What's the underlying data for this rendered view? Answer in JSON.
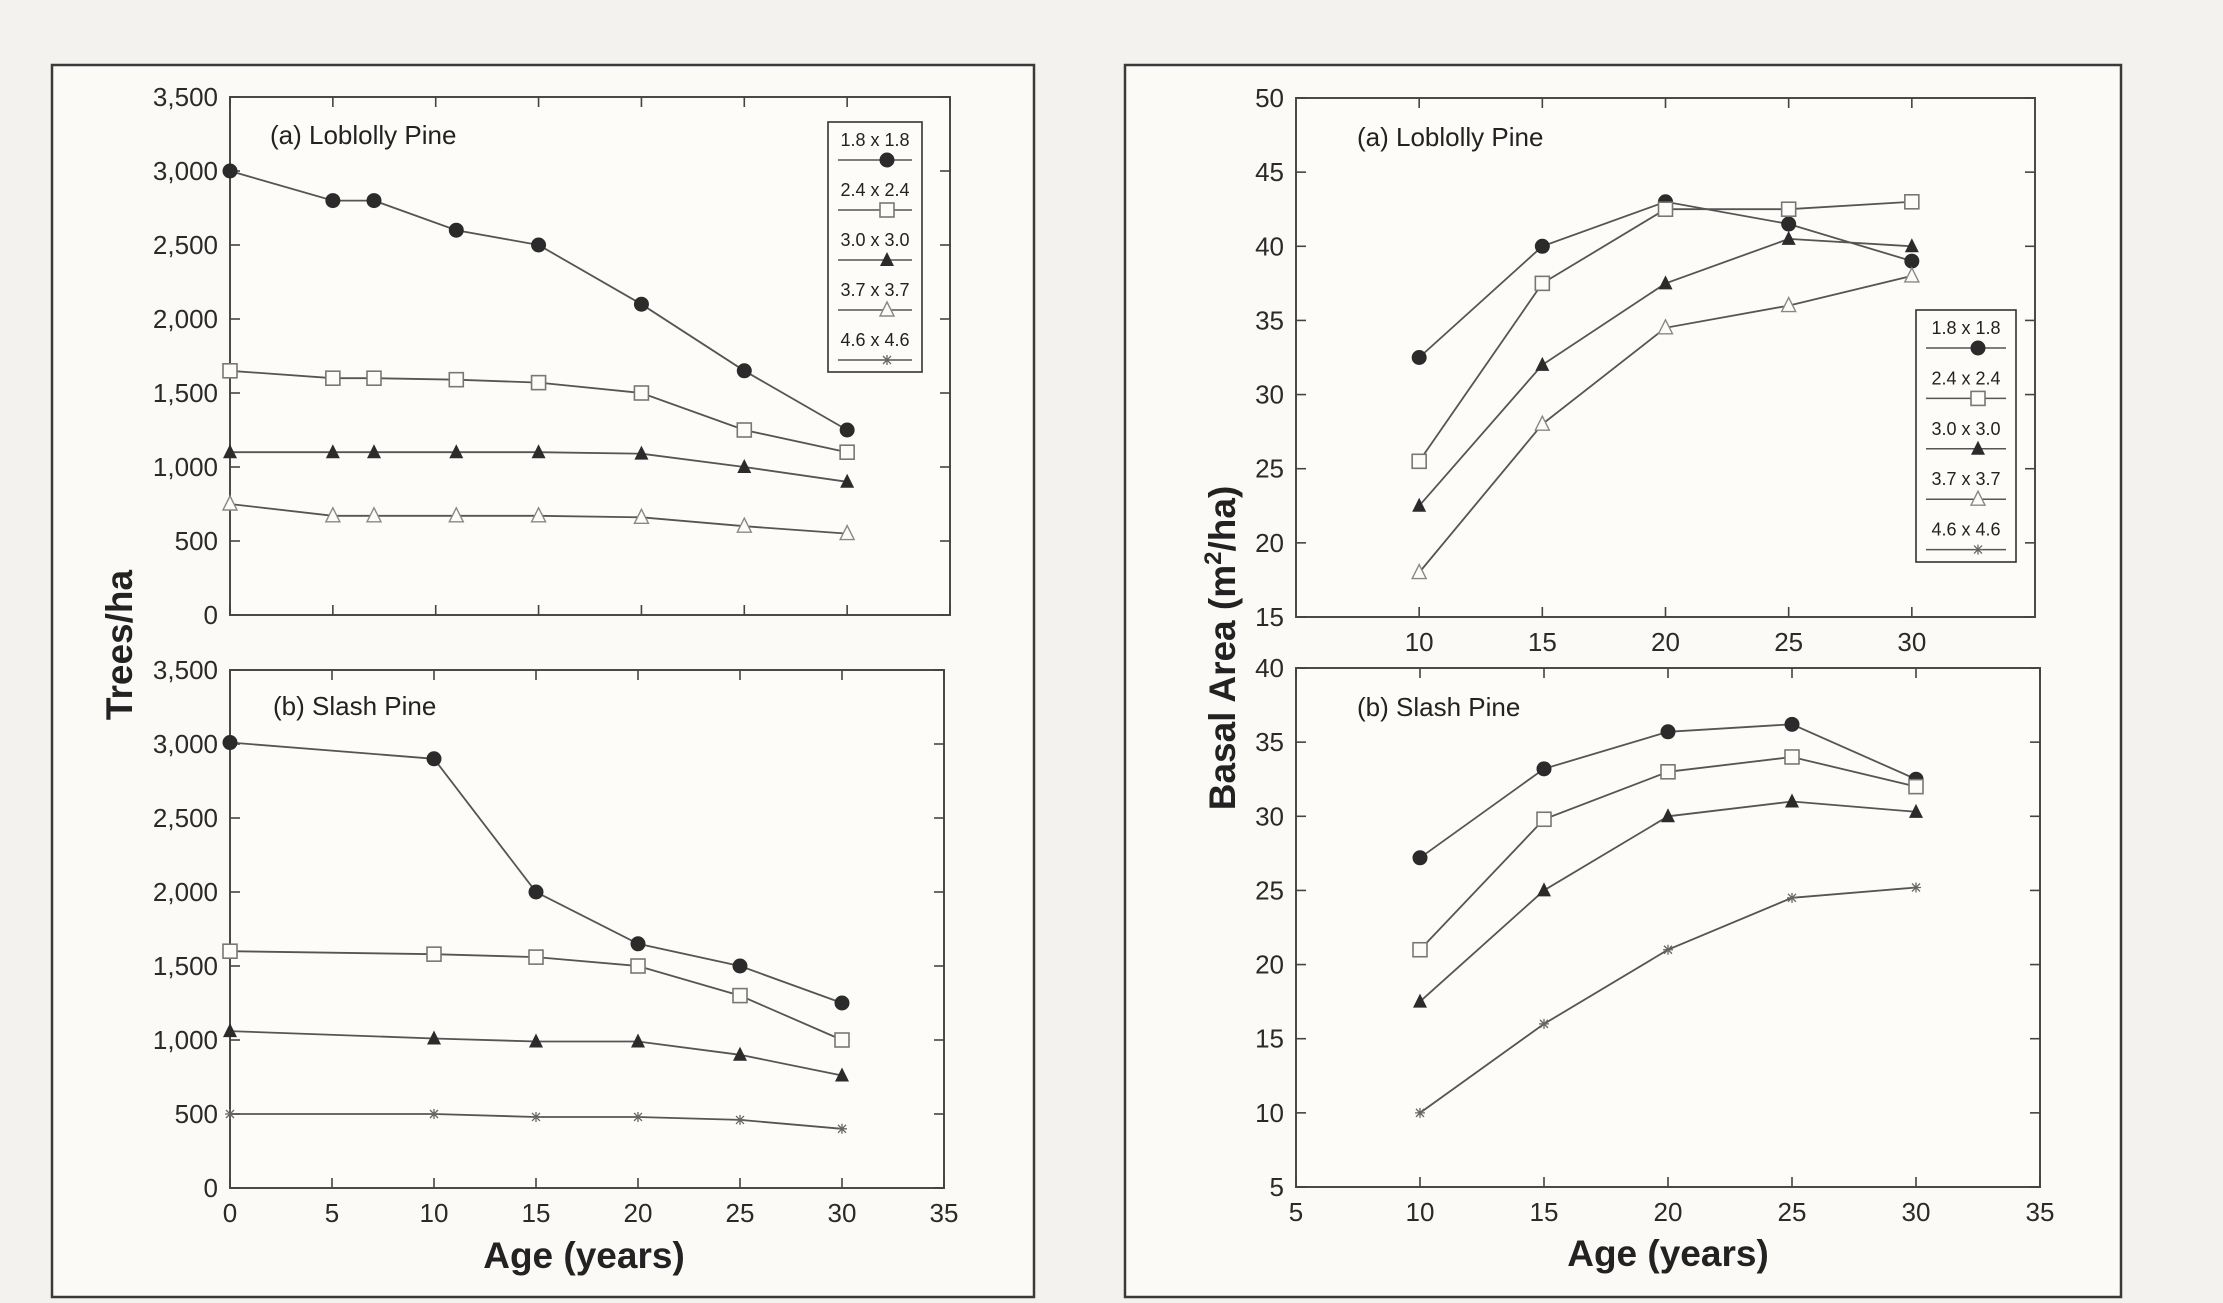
{
  "chart_data": [
    {
      "type": "line",
      "title": "(a) Loblolly Pine",
      "xlabel": "",
      "ylabel": "Trees/ha",
      "xlim": [
        0,
        35
      ],
      "ylim": [
        0,
        3500
      ],
      "xticks": [
        "0",
        "5",
        "10",
        "15",
        "20",
        "25",
        "30",
        "35"
      ],
      "yticks": [
        "0",
        "500",
        "1,000",
        "1,500",
        "2,000",
        "2,500",
        "3,000",
        "3,500"
      ],
      "legend": [
        "1.8 x 1.8",
        "2.4 x 2.4",
        "3.0 x 3.0",
        "3.7 x 3.7",
        "4.6 x 4.6"
      ],
      "legend_position": "top-right",
      "series": [
        {
          "name": "1.8 x 1.8",
          "marker": "circle-filled",
          "points": [
            [
              0,
              3000
            ],
            [
              5,
              2800
            ],
            [
              7,
              2800
            ],
            [
              11,
              2600
            ],
            [
              15,
              2500
            ],
            [
              20,
              2100
            ],
            [
              25,
              1650
            ],
            [
              30,
              1250
            ]
          ]
        },
        {
          "name": "2.4 x 2.4",
          "marker": "square-open",
          "points": [
            [
              0,
              1650
            ],
            [
              5,
              1600
            ],
            [
              7,
              1600
            ],
            [
              11,
              1590
            ],
            [
              15,
              1570
            ],
            [
              20,
              1500
            ],
            [
              25,
              1250
            ],
            [
              30,
              1100
            ]
          ]
        },
        {
          "name": "3.0 x 3.0",
          "marker": "triangle-filled",
          "points": [
            [
              0,
              1100
            ],
            [
              5,
              1100
            ],
            [
              7,
              1100
            ],
            [
              11,
              1100
            ],
            [
              15,
              1100
            ],
            [
              20,
              1090
            ],
            [
              25,
              1000
            ],
            [
              30,
              900
            ]
          ]
        },
        {
          "name": "3.7 x 3.7",
          "marker": "triangle-open",
          "points": [
            [
              0,
              750
            ],
            [
              5,
              670
            ],
            [
              7,
              670
            ],
            [
              11,
              670
            ],
            [
              15,
              670
            ],
            [
              20,
              660
            ],
            [
              25,
              600
            ],
            [
              30,
              550
            ]
          ]
        }
      ]
    },
    {
      "type": "line",
      "title": "(b) Slash Pine",
      "xlabel": "Age (years)",
      "ylabel": "",
      "xlim": [
        0,
        35
      ],
      "ylim": [
        0,
        3500
      ],
      "xticks": [
        "0",
        "5",
        "10",
        "15",
        "20",
        "25",
        "30",
        "35"
      ],
      "yticks": [
        "0",
        "500",
        "1,000",
        "1,500",
        "2,000",
        "2,500",
        "3,000",
        "3,500"
      ],
      "series": [
        {
          "name": "1.8 x 1.8",
          "marker": "circle-filled",
          "points": [
            [
              0,
              3010
            ],
            [
              10,
              2900
            ],
            [
              15,
              2000
            ],
            [
              20,
              1650
            ],
            [
              25,
              1500
            ],
            [
              30,
              1250
            ]
          ]
        },
        {
          "name": "2.4 x 2.4",
          "marker": "square-open",
          "points": [
            [
              0,
              1600
            ],
            [
              10,
              1580
            ],
            [
              15,
              1560
            ],
            [
              20,
              1500
            ],
            [
              25,
              1300
            ],
            [
              30,
              1000
            ]
          ]
        },
        {
          "name": "3.0 x 3.0",
          "marker": "triangle-filled",
          "points": [
            [
              0,
              1060
            ],
            [
              10,
              1010
            ],
            [
              15,
              990
            ],
            [
              20,
              990
            ],
            [
              25,
              900
            ],
            [
              30,
              760
            ]
          ]
        },
        {
          "name": "4.6 x 4.6",
          "marker": "star",
          "points": [
            [
              0,
              500
            ],
            [
              10,
              500
            ],
            [
              15,
              480
            ],
            [
              20,
              480
            ],
            [
              25,
              460
            ],
            [
              30,
              400
            ]
          ]
        }
      ]
    },
    {
      "type": "line",
      "title": "(a) Loblolly Pine",
      "xlabel": "",
      "ylabel": "Basal Area (m²/ha)",
      "xlim": [
        5,
        35
      ],
      "ylim": [
        15,
        50
      ],
      "yticks": [
        "15",
        "20",
        "25",
        "30",
        "35",
        "40",
        "45",
        "50"
      ],
      "legend": [
        "1.8 x 1.8",
        "2.4 x 2.4",
        "3.0 x 3.0",
        "3.7 x 3.7",
        "4.6 x 4.6"
      ],
      "legend_position": "right",
      "series": [
        {
          "name": "1.8 x 1.8",
          "marker": "circle-filled",
          "points": [
            [
              10,
              32.5
            ],
            [
              15,
              40
            ],
            [
              20,
              43
            ],
            [
              25,
              41.5
            ],
            [
              30,
              39
            ]
          ]
        },
        {
          "name": "2.4 x 2.4",
          "marker": "square-open",
          "points": [
            [
              10,
              25.5
            ],
            [
              15,
              37.5
            ],
            [
              20,
              42.5
            ],
            [
              25,
              42.5
            ],
            [
              30,
              43
            ]
          ]
        },
        {
          "name": "3.0 x 3.0",
          "marker": "triangle-filled",
          "points": [
            [
              10,
              22.5
            ],
            [
              15,
              32
            ],
            [
              20,
              37.5
            ],
            [
              25,
              40.5
            ],
            [
              30,
              40
            ]
          ]
        },
        {
          "name": "3.7 x 3.7",
          "marker": "triangle-open",
          "points": [
            [
              10,
              18
            ],
            [
              15,
              28
            ],
            [
              20,
              34.5
            ],
            [
              25,
              36
            ],
            [
              30,
              38
            ]
          ]
        }
      ]
    },
    {
      "type": "line",
      "title": "(b) Slash Pine",
      "xlabel": "Age (years)",
      "ylabel": "",
      "xlim": [
        5,
        35
      ],
      "ylim": [
        5,
        40
      ],
      "xticks": [
        "5",
        "10",
        "15",
        "20",
        "25",
        "30",
        "35"
      ],
      "yticks": [
        "5",
        "10",
        "15",
        "20",
        "25",
        "30",
        "35",
        "40"
      ],
      "series": [
        {
          "name": "1.8 x 1.8",
          "marker": "circle-filled",
          "points": [
            [
              10,
              27.2
            ],
            [
              15,
              33.2
            ],
            [
              20,
              35.7
            ],
            [
              25,
              36.2
            ],
            [
              30,
              32.5
            ]
          ]
        },
        {
          "name": "2.4 x 2.4",
          "marker": "square-open",
          "points": [
            [
              10,
              21
            ],
            [
              15,
              29.8
            ],
            [
              20,
              33
            ],
            [
              25,
              34
            ],
            [
              30,
              32
            ]
          ]
        },
        {
          "name": "3.0 x 3.0",
          "marker": "triangle-filled",
          "points": [
            [
              10,
              17.5
            ],
            [
              15,
              25
            ],
            [
              20,
              30
            ],
            [
              25,
              31
            ],
            [
              30,
              30.3
            ]
          ]
        },
        {
          "name": "4.6 x 4.6",
          "marker": "star",
          "points": [
            [
              10,
              10
            ],
            [
              15,
              16
            ],
            [
              20,
              21
            ],
            [
              25,
              24.5
            ],
            [
              30,
              25.2
            ]
          ]
        }
      ]
    }
  ]
}
